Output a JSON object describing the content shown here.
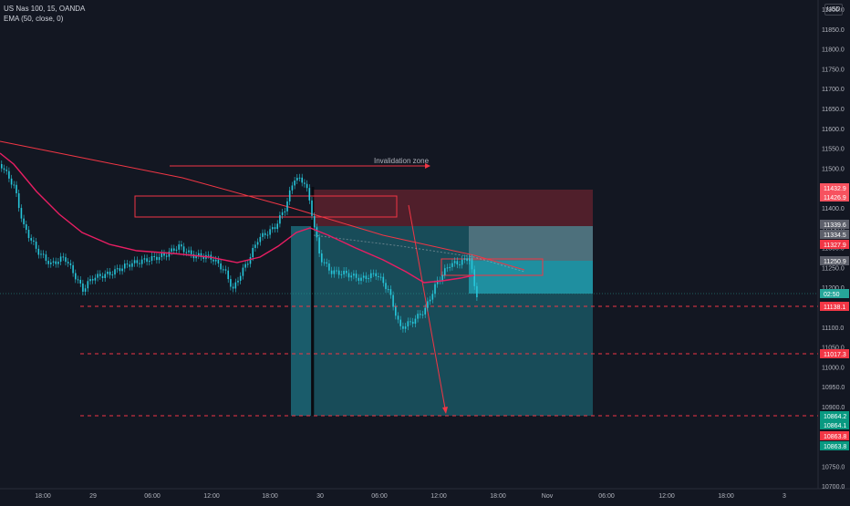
{
  "legend": {
    "symbol": "US Nas 100, 15, OANDA",
    "indicator": "EMA (50, close, 0)"
  },
  "currency": "USD",
  "annotation": "Invalidation zone",
  "price_axis": {
    "ticks": [
      "11900.0",
      "11850.0",
      "11800.0",
      "11750.0",
      "11700.0",
      "11650.0",
      "11600.0",
      "11550.0",
      "11500.0",
      "11450.0",
      "11400.0",
      "11350.0",
      "11300.0",
      "11250.0",
      "11200.0",
      "11150.0",
      "11100.0",
      "11050.0",
      "11000.0",
      "10950.0",
      "10900.0",
      "10850.0",
      "10800.0",
      "10750.0",
      "10700.0"
    ],
    "tags": [
      {
        "text": "11432.9",
        "color": "#f7525f"
      },
      {
        "text": "11426.9",
        "color": "#f7525f"
      },
      {
        "text": "11339.6",
        "color": "#5d606b"
      },
      {
        "text": "11334.5",
        "color": "#5d606b"
      },
      {
        "text": "11327.9",
        "color": "#f23645"
      },
      {
        "text": "11250.9",
        "color": "#5d606b"
      },
      {
        "text": "02:50",
        "color": "#26a69a"
      },
      {
        "text": "11138.1",
        "color": "#f23645"
      },
      {
        "text": "11017.3",
        "color": "#f23645"
      },
      {
        "text": "10864.2",
        "color": "#089981"
      },
      {
        "text": "10864.1",
        "color": "#089981"
      },
      {
        "text": "10863.8",
        "color": "#f23645"
      },
      {
        "text": "10863.8",
        "color": "#089981"
      }
    ]
  },
  "time_axis": {
    "labels": [
      "18:00",
      "29",
      "06:00",
      "12:00",
      "18:00",
      "30",
      "06:00",
      "12:00",
      "18:00",
      "Nov",
      "06:00",
      "12:00",
      "18:00",
      "3"
    ]
  },
  "colors": {
    "background": "#131722",
    "candle": "#26c6da",
    "ema": "#e91e63",
    "trend": "#f23645",
    "stop_zone": "#f23645",
    "target_zone": "#26c6da"
  }
}
